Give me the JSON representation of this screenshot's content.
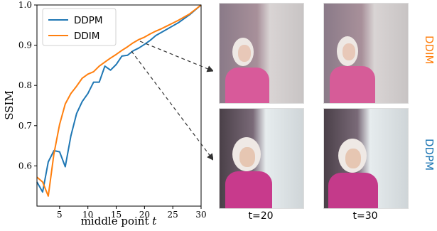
{
  "colors": {
    "ddpm": "#1f77b4",
    "ddim": "#ff7f0e"
  },
  "chart_data": {
    "type": "line",
    "xlabel_prefix": "middle point ",
    "xlabel_var": "t",
    "ylabel": "SSIM",
    "xlim": [
      1,
      30
    ],
    "ylim": [
      0.5,
      1.0
    ],
    "xticks": [
      5,
      10,
      15,
      20,
      25,
      30
    ],
    "yticks": [
      0.6,
      0.7,
      0.8,
      0.9,
      1.0
    ],
    "xtick_labels": [
      "5",
      "10",
      "15",
      "20",
      "25",
      "30"
    ],
    "ytick_labels": [
      "0.6",
      "0.7",
      "0.8",
      "0.9",
      "1.0"
    ],
    "grid": false,
    "legend_position": "top-left",
    "series": [
      {
        "name": "DDPM",
        "color_key": "ddpm",
        "x": [
          1,
          2,
          3,
          4,
          5,
          6,
          7,
          8,
          9,
          10,
          11,
          12,
          13,
          14,
          15,
          16,
          17,
          18,
          19,
          20,
          21,
          22,
          23,
          24,
          25,
          26,
          27,
          28,
          29,
          30
        ],
        "y": [
          0.56,
          0.535,
          0.61,
          0.638,
          0.635,
          0.598,
          0.675,
          0.73,
          0.76,
          0.78,
          0.808,
          0.808,
          0.848,
          0.838,
          0.852,
          0.873,
          0.875,
          0.886,
          0.893,
          0.902,
          0.912,
          0.924,
          0.932,
          0.94,
          0.948,
          0.956,
          0.966,
          0.976,
          0.988,
          1.0
        ]
      },
      {
        "name": "DDIM",
        "color_key": "ddim",
        "x": [
          1,
          2,
          3,
          4,
          5,
          6,
          7,
          8,
          9,
          10,
          11,
          12,
          13,
          14,
          15,
          16,
          17,
          18,
          19,
          20,
          21,
          22,
          23,
          24,
          25,
          26,
          27,
          28,
          29,
          30
        ],
        "y": [
          0.572,
          0.56,
          0.525,
          0.63,
          0.703,
          0.754,
          0.78,
          0.798,
          0.818,
          0.828,
          0.834,
          0.848,
          0.858,
          0.868,
          0.877,
          0.887,
          0.896,
          0.906,
          0.914,
          0.92,
          0.928,
          0.935,
          0.941,
          0.948,
          0.955,
          0.962,
          0.97,
          0.978,
          0.989,
          1.0
        ]
      }
    ]
  },
  "panels": {
    "ddim_label": "DDIM",
    "ddpm_label": "DDPM",
    "captions": [
      "t=20",
      "t=30"
    ]
  }
}
